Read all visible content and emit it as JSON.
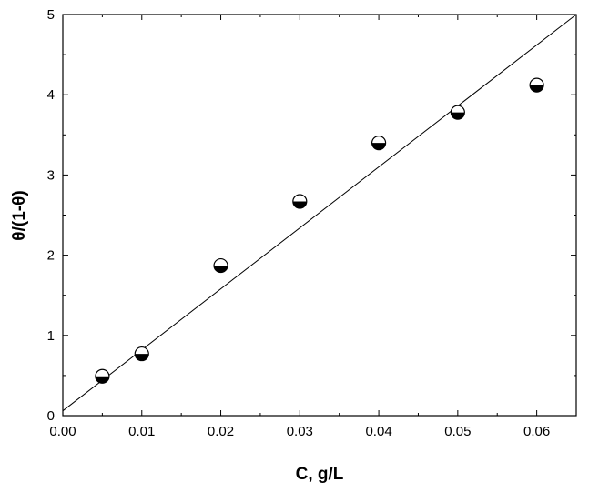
{
  "chart_data": {
    "type": "scatter",
    "title": "",
    "xlabel": "C, g/L",
    "ylabel": "θ/(1-θ)",
    "xlim": [
      0.0,
      0.065
    ],
    "ylim": [
      0,
      5
    ],
    "x_ticks": [
      "0.00",
      "0.01",
      "0.02",
      "0.03",
      "0.04",
      "0.05",
      "0.06"
    ],
    "y_ticks": [
      "0",
      "1",
      "2",
      "3",
      "4",
      "5"
    ],
    "grid": false,
    "legend": "none",
    "series": [
      {
        "marker": "half-filled-circle",
        "points": [
          {
            "x": 0.005,
            "y": 0.49
          },
          {
            "x": 0.01,
            "y": 0.77
          },
          {
            "x": 0.02,
            "y": 1.87
          },
          {
            "x": 0.03,
            "y": 2.67
          },
          {
            "x": 0.04,
            "y": 3.4
          },
          {
            "x": 0.05,
            "y": 3.78
          },
          {
            "x": 0.06,
            "y": 4.12
          }
        ]
      }
    ],
    "fit_line": {
      "x": [
        0.0,
        0.065
      ],
      "y": [
        0.06,
        5.0
      ]
    },
    "colors": {
      "axis": "#000000",
      "marker_fill": "#000000",
      "marker_empty": "#ffffff",
      "background": "#ffffff"
    }
  }
}
